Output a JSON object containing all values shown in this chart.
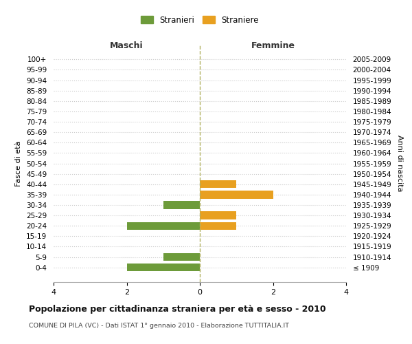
{
  "age_groups": [
    "100+",
    "95-99",
    "90-94",
    "85-89",
    "80-84",
    "75-79",
    "70-74",
    "65-69",
    "60-64",
    "55-59",
    "50-54",
    "45-49",
    "40-44",
    "35-39",
    "30-34",
    "25-29",
    "20-24",
    "15-19",
    "10-14",
    "5-9",
    "0-4"
  ],
  "birth_years": [
    "≤ 1909",
    "1910-1914",
    "1915-1919",
    "1920-1924",
    "1925-1929",
    "1930-1934",
    "1935-1939",
    "1940-1944",
    "1945-1949",
    "1950-1954",
    "1955-1959",
    "1960-1964",
    "1965-1969",
    "1970-1974",
    "1975-1979",
    "1980-1984",
    "1985-1989",
    "1990-1994",
    "1995-1999",
    "2000-2004",
    "2005-2009"
  ],
  "males": [
    0,
    0,
    0,
    0,
    0,
    0,
    0,
    0,
    0,
    0,
    0,
    0,
    0,
    0,
    -1,
    0,
    -2,
    0,
    0,
    -1,
    -2
  ],
  "females": [
    0,
    0,
    0,
    0,
    0,
    0,
    0,
    0,
    0,
    0,
    0,
    0,
    1,
    2,
    0,
    1,
    1,
    0,
    0,
    0,
    0
  ],
  "male_color": "#6d9b3a",
  "female_color": "#e8a020",
  "xlim": [
    -4,
    4
  ],
  "xticks": [
    -4,
    -2,
    0,
    2,
    4
  ],
  "xticklabels": [
    "4",
    "2",
    "0",
    "2",
    "4"
  ],
  "title": "Popolazione per cittadinanza straniera per età e sesso - 2010",
  "subtitle": "COMUNE DI PILA (VC) - Dati ISTAT 1° gennaio 2010 - Elaborazione TUTTITALIA.IT",
  "ylabel_left": "Fasce di età",
  "ylabel_right": "Anni di nascita",
  "header_left": "Maschi",
  "header_right": "Femmine",
  "legend_stranieri": "Stranieri",
  "legend_straniere": "Straniere",
  "background_color": "#ffffff",
  "grid_color": "#cccccc",
  "bar_height": 0.75
}
